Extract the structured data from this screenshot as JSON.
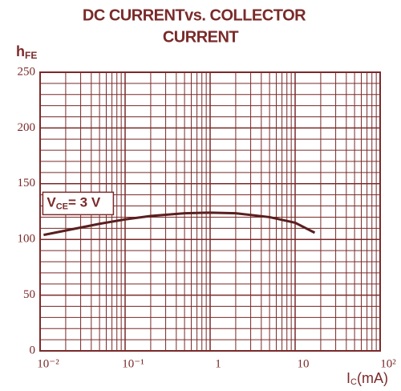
{
  "chart_data": {
    "type": "line",
    "title": [
      "DC CURRENTvs.  COLLECTOR",
      "CURRENT"
    ],
    "y_label": {
      "main": "h",
      "sub": "FE"
    },
    "x_label": {
      "main": "I",
      "sub": "C",
      "rest": "(mA)"
    },
    "annotation": {
      "main": "V",
      "sub": "CE",
      "rest": "= 3 V",
      "x": 0.012,
      "y": 133
    },
    "x": [
      0.011,
      0.02,
      0.05,
      0.1,
      0.2,
      0.5,
      1,
      2,
      5,
      10,
      17
    ],
    "series": [
      {
        "name": "VCE = 3 V",
        "color": "#5a1f1f",
        "values": [
          104,
          108,
          114,
          118,
          121,
          123.5,
          124,
          123.5,
          120,
          115,
          106
        ]
      }
    ],
    "xlim": [
      0.01,
      100
    ],
    "ylim": [
      0,
      250
    ],
    "log_x": true,
    "xticks": [
      {
        "value": 0.01,
        "label": "10⁻²"
      },
      {
        "value": 0.1,
        "label": "10⁻¹"
      },
      1,
      10,
      {
        "value": 100,
        "label": "10²"
      }
    ],
    "yticks": [
      0,
      50,
      100,
      150,
      200,
      250
    ],
    "grid": true,
    "minor_grid": true,
    "grid_color": "#7a2a2a"
  }
}
